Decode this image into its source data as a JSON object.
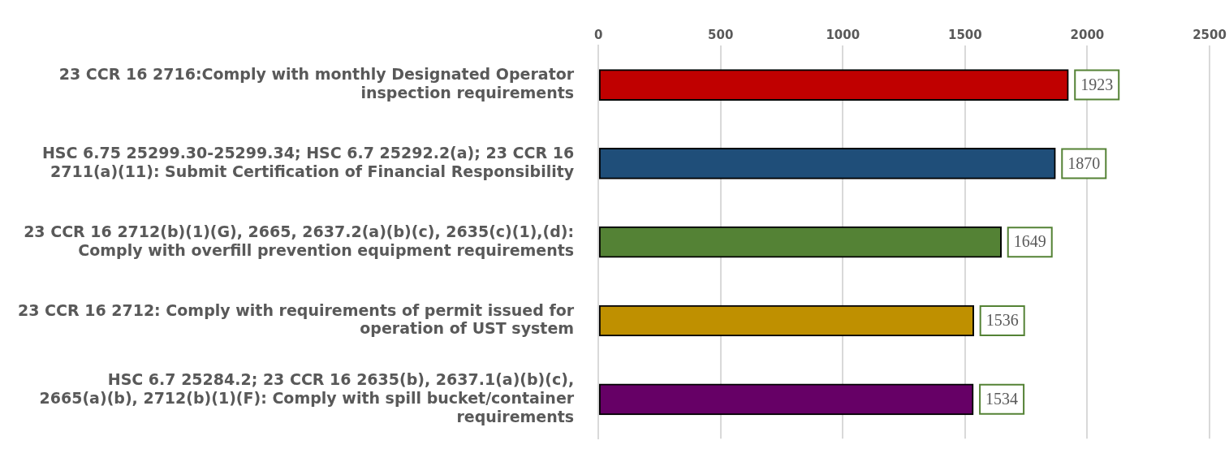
{
  "chart_data": {
    "type": "bar",
    "orientation": "horizontal",
    "categories": [
      "23 CCR 16 2716:Comply with monthly Designated Operator inspection requirements",
      "HSC 6.75 25299.30-25299.34; HSC 6.7 25292.2(a); 23 CCR 16 2711(a)(11): Submit Certification of Financial Responsibility",
      "23 CCR 16 2712(b)(1)(G), 2665, 2637.2(a)(b)(c), 2635(c)(1),(d): Comply with overfill prevention equipment requirements",
      "23 CCR 16 2712: Comply with requirements of permit issued for operation of UST system",
      "HSC 6.7 25284.2; 23 CCR 16 2635(b), 2637.1(a)(b)(c), 2665(a)(b), 2712(b)(1)(F): Comply with spill bucket/container requirements"
    ],
    "values": [
      1923,
      1870,
      1649,
      1536,
      1534
    ],
    "colors": [
      "#c00000",
      "#1f4e79",
      "#548235",
      "#bf9000",
      "#660066"
    ],
    "xlim": [
      0,
      2500
    ],
    "xticks": [
      0,
      500,
      1000,
      1500,
      2000,
      2500
    ],
    "grid": "x",
    "data_labels": true,
    "legend": false
  }
}
